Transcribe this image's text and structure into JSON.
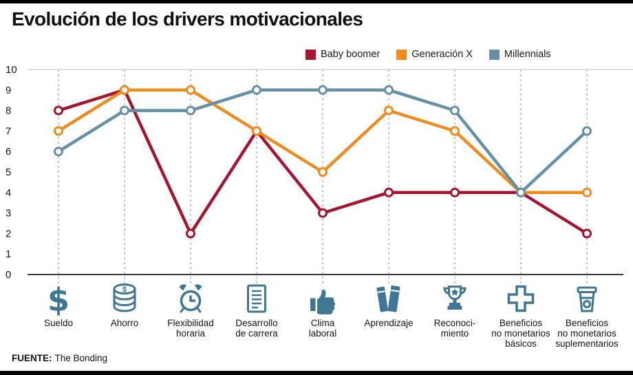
{
  "title": "Evolución de los drivers motivacionales",
  "source": {
    "label": "FUENTE:",
    "value": "The Bonding"
  },
  "icon_color": "#3f7693",
  "chart_data": {
    "type": "line",
    "title": "Evolución de los drivers motivacionales",
    "xlabel": "",
    "ylabel": "",
    "ylim": [
      0,
      10
    ],
    "yticks": [
      0,
      1,
      2,
      3,
      4,
      5,
      6,
      7,
      8,
      9,
      10
    ],
    "grid": "vertical-dashed",
    "legend_position": "top-right",
    "categories": [
      "Sueldo",
      "Ahorro",
      "Flexibilidad\nhoraria",
      "Desarrollo\nde carrera",
      "Clima\nlaboral",
      "Aprendizaje",
      "Reconoci-\nmiento",
      "Beneficios\nno monetarios\nbásicos",
      "Beneficios\nno monetarios\nsuplementarios"
    ],
    "icons": [
      "dollar-icon",
      "coins-icon",
      "alarm-clock-icon",
      "document-icon",
      "thumbs-up-icon",
      "books-icon",
      "trophy-icon",
      "cross-icon",
      "coffee-cup-icon"
    ],
    "series": [
      {
        "name": "Baby boomer",
        "color": "#a4152f",
        "values": [
          8,
          9,
          2,
          7,
          3,
          4,
          4,
          4,
          2
        ]
      },
      {
        "name": "Generación X",
        "color": "#f08b22",
        "values": [
          7,
          9,
          9,
          7,
          5,
          8,
          7,
          4,
          4
        ]
      },
      {
        "name": "Millennials",
        "color": "#6590a7",
        "values": [
          6,
          8,
          8,
          9,
          9,
          9,
          8,
          4,
          7
        ]
      }
    ]
  }
}
